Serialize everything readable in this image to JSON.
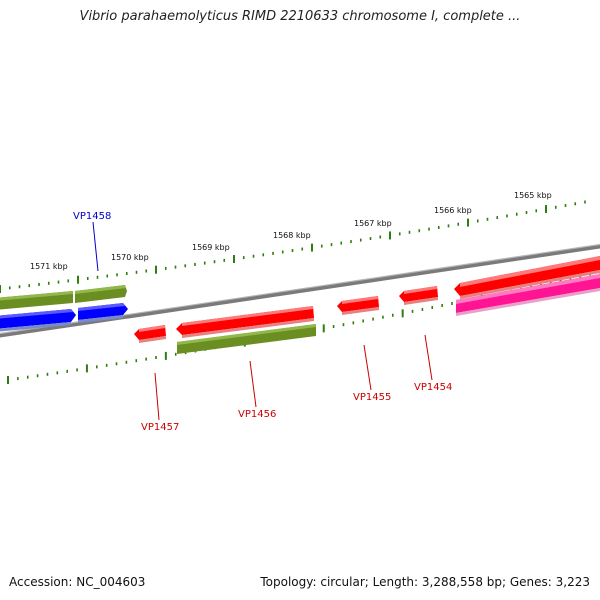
{
  "title": "Vibrio parahaemolyticus RIMD 2210633 chromosome I, complete ...",
  "footer": {
    "accession": "Accession: NC_004603",
    "stats": "Topology: circular; Length: 3,288,558 bp; Genes: 3,223"
  },
  "colors": {
    "backbone": "#808080",
    "tick": "#2e7d10",
    "red_gene": "#ff0000",
    "green_gene": "#6b8e23",
    "blue_gene": "#0000ff",
    "magenta_gene": "#ff1493",
    "label_red": "#cc0000",
    "label_blue": "#0000cc"
  },
  "ticks": [
    {
      "label": "1571 kbp"
    },
    {
      "label": "1570 kbp"
    },
    {
      "label": "1569 kbp"
    },
    {
      "label": "1568 kbp"
    },
    {
      "label": "1567 kbp"
    },
    {
      "label": "1566 kbp"
    },
    {
      "label": "1565 kbp"
    }
  ],
  "gene_labels": [
    {
      "name": "VP1458",
      "color": "blue"
    },
    {
      "name": "VP1457",
      "color": "red"
    },
    {
      "name": "VP1456",
      "color": "red"
    },
    {
      "name": "VP1455",
      "color": "red"
    },
    {
      "name": "VP1454",
      "color": "red"
    }
  ]
}
